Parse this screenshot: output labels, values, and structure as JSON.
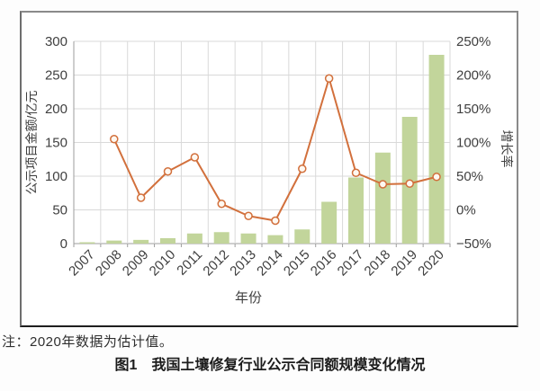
{
  "figure": {
    "note": "注：2020年数据为估计值。",
    "caption_label": "图1",
    "caption_title": "我国土壤修复行业公示合同额规模变化情况"
  },
  "colors": {
    "bar": "#c2d59b",
    "line": "#d2703c",
    "marker_fill": "#fef8f1",
    "grid": "#d9d9d9",
    "axis_line": "#9e9e9e",
    "tick_text": "#3f3f3f"
  },
  "chart_data": {
    "type": "bar",
    "subtype": "combo-bar-line",
    "title": "",
    "categories": [
      "2007",
      "2008",
      "2009",
      "2010",
      "2011",
      "2012",
      "2013",
      "2014",
      "2015",
      "2016",
      "2017",
      "2018",
      "2019",
      "2020"
    ],
    "series": [
      {
        "name": "公示项目金额",
        "chart": "bar",
        "axis": "left",
        "unit": "亿元",
        "values": [
          2,
          4.5,
          5.5,
          8,
          15,
          17,
          15,
          12.5,
          21,
          62,
          98,
          135,
          188,
          280
        ]
      },
      {
        "name": "增长率",
        "chart": "line",
        "axis": "right",
        "unit": "%",
        "values": [
          null,
          105,
          18,
          57,
          78,
          9,
          -9,
          -16,
          61,
          195,
          55,
          38,
          39,
          49
        ]
      }
    ],
    "left_axis": {
      "label": "公示项目金额/亿元",
      "min": 0,
      "max": 300,
      "step": 50,
      "ticks": [
        "0",
        "50",
        "100",
        "150",
        "200",
        "250",
        "300"
      ]
    },
    "right_axis": {
      "label": "增长率",
      "min": -50,
      "max": 250,
      "step": 50,
      "ticks": [
        "−50%",
        "0%",
        "50%",
        "100%",
        "150%",
        "200%",
        "250%"
      ]
    },
    "x_axis": {
      "label": "年份"
    },
    "grid": {
      "horizontal": true,
      "vertical": true
    },
    "legend_position": "none"
  }
}
